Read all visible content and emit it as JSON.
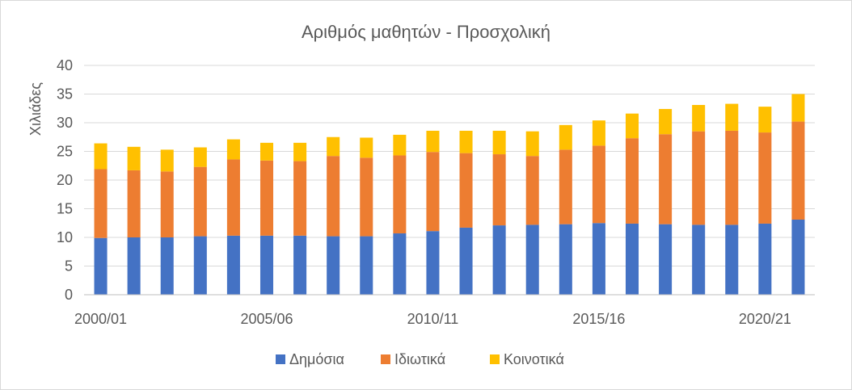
{
  "chart_data": {
    "type": "bar",
    "stacked": true,
    "title": "Αριθμός μαθητών - Προσχολική",
    "ylabel": "Χιλιάδες",
    "xlabel": "",
    "ylim": [
      0,
      40
    ],
    "yticks": [
      0,
      5,
      10,
      15,
      20,
      25,
      30,
      35,
      40
    ],
    "grid": true,
    "legend_position": "bottom",
    "categories": [
      "2000/01",
      "2001/02",
      "2002/03",
      "2003/04",
      "2004/05",
      "2005/06",
      "2006/07",
      "2007/08",
      "2008/09",
      "2009/10",
      "2010/11",
      "2011/12",
      "2012/13",
      "2013/14",
      "2014/15",
      "2015/16",
      "2016/17",
      "2017/18",
      "2018/19",
      "2019/20",
      "2020/21",
      "2021/22"
    ],
    "x_tick_labels": [
      "2000/01",
      "",
      "",
      "",
      "",
      "2005/06",
      "",
      "",
      "",
      "",
      "2010/11",
      "",
      "",
      "",
      "",
      "2015/16",
      "",
      "",
      "",
      "",
      "2020/21",
      ""
    ],
    "series": [
      {
        "name": "Δημόσια",
        "color": "#4472c4",
        "values": [
          9.9,
          10.0,
          10.0,
          10.2,
          10.3,
          10.3,
          10.3,
          10.2,
          10.2,
          10.7,
          11.1,
          11.7,
          12.1,
          12.2,
          12.3,
          12.5,
          12.4,
          12.3,
          12.2,
          12.2,
          12.4,
          13.1
        ]
      },
      {
        "name": "Ιδιωτικά",
        "color": "#ed7d31",
        "values": [
          12.0,
          11.7,
          11.5,
          12.1,
          13.3,
          13.1,
          13.0,
          14.0,
          13.7,
          13.6,
          13.8,
          13.0,
          12.4,
          12.0,
          13.0,
          13.5,
          14.9,
          15.7,
          16.3,
          16.4,
          15.9,
          17.1
        ]
      },
      {
        "name": "Κοινοτικά",
        "color": "#ffc000",
        "values": [
          4.5,
          4.1,
          3.8,
          3.4,
          3.5,
          3.1,
          3.2,
          3.3,
          3.5,
          3.6,
          3.7,
          3.9,
          4.1,
          4.3,
          4.3,
          4.4,
          4.3,
          4.4,
          4.6,
          4.7,
          4.5,
          4.8
        ]
      }
    ]
  }
}
